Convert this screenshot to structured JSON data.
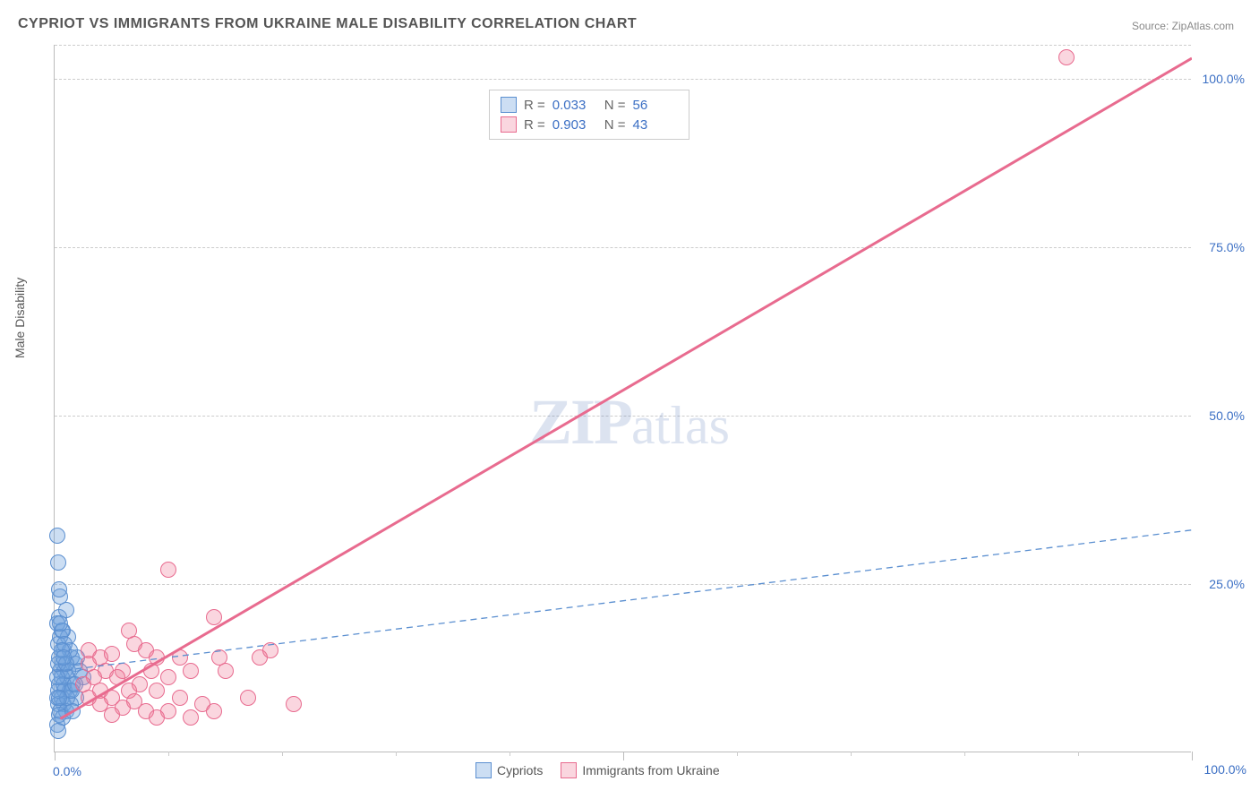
{
  "title": "CYPRIOT VS IMMIGRANTS FROM UKRAINE MALE DISABILITY CORRELATION CHART",
  "source": "Source: ZipAtlas.com",
  "ylabel": "Male Disability",
  "watermark_a": "ZIP",
  "watermark_b": "atlas",
  "chart": {
    "type": "scatter",
    "xlim": [
      0,
      100
    ],
    "ylim": [
      0,
      105
    ],
    "xtick_major": [
      0,
      50,
      100
    ],
    "xtick_minor": [
      10,
      20,
      30,
      40,
      60,
      70,
      80,
      90
    ],
    "ytick_labels": [
      "25.0%",
      "50.0%",
      "75.0%",
      "100.0%"
    ],
    "ytick_values": [
      25,
      50,
      75,
      100
    ],
    "xlabel_0": "0.0%",
    "xlabel_100": "100.0%",
    "grid_color": "#cccccc",
    "axis_color": "#bbbbbb",
    "background": "#ffffff",
    "tick_label_color": "#3b6fc4",
    "marker_radius": 9,
    "marker_stroke_width": 1.2,
    "line_width_solid": 3,
    "line_width_dashed": 1.3,
    "dash_pattern": "7,5"
  },
  "series": {
    "a": {
      "label": "Cypriots",
      "color_fill": "rgba(108,160,222,0.35)",
      "color_stroke": "#5b8fd0",
      "R": "0.033",
      "N": "56",
      "trend": {
        "x1": 0,
        "y1": 12,
        "x2": 100,
        "y2": 33,
        "dashed": true
      },
      "points": [
        [
          0.2,
          32
        ],
        [
          0.3,
          28
        ],
        [
          0.5,
          23
        ],
        [
          0.4,
          20
        ],
        [
          0.6,
          18
        ],
        [
          1.0,
          21
        ],
        [
          1.2,
          17
        ],
        [
          0.8,
          15
        ],
        [
          1.5,
          14
        ],
        [
          0.3,
          16
        ],
        [
          0.7,
          13
        ],
        [
          1.8,
          13
        ],
        [
          2.2,
          12
        ],
        [
          0.5,
          12
        ],
        [
          1.1,
          11
        ],
        [
          0.4,
          10
        ],
        [
          1.6,
          10
        ],
        [
          2.5,
          11
        ],
        [
          0.9,
          9
        ],
        [
          1.3,
          9
        ],
        [
          0.2,
          8
        ],
        [
          0.6,
          8
        ],
        [
          1.9,
          8
        ],
        [
          0.8,
          7
        ],
        [
          1.4,
          7
        ],
        [
          0.3,
          7
        ],
        [
          2.0,
          14
        ],
        [
          0.5,
          6
        ],
        [
          1.0,
          6
        ],
        [
          0.4,
          5.5
        ],
        [
          0.7,
          5
        ],
        [
          1.6,
          6
        ],
        [
          0.2,
          19
        ],
        [
          0.9,
          12
        ],
        [
          1.3,
          15
        ],
        [
          0.4,
          14
        ],
        [
          0.6,
          11
        ],
        [
          1.1,
          8
        ],
        [
          0.3,
          9
        ],
        [
          0.8,
          10
        ],
        [
          1.5,
          9
        ],
        [
          0.5,
          17
        ],
        [
          0.2,
          4
        ],
        [
          0.7,
          18
        ],
        [
          1.2,
          12
        ],
        [
          0.4,
          24
        ],
        [
          0.9,
          16
        ],
        [
          0.3,
          13
        ],
        [
          0.6,
          15
        ],
        [
          1.8,
          10
        ],
        [
          0.5,
          19
        ],
        [
          0.2,
          11
        ],
        [
          1.0,
          13
        ],
        [
          0.4,
          8
        ],
        [
          0.8,
          14
        ],
        [
          0.3,
          3
        ]
      ]
    },
    "b": {
      "label": "Immigrants from Ukraine",
      "color_fill": "rgba(240,120,150,0.3)",
      "color_stroke": "#e86b8f",
      "R": "0.903",
      "N": "43",
      "trend": {
        "x1": 0.5,
        "y1": 5,
        "x2": 100,
        "y2": 103,
        "dashed": false
      },
      "points": [
        [
          89,
          103
        ],
        [
          10,
          27
        ],
        [
          6.5,
          18
        ],
        [
          7,
          16
        ],
        [
          8,
          15
        ],
        [
          9,
          14
        ],
        [
          14,
          20
        ],
        [
          14.5,
          14
        ],
        [
          18,
          14
        ],
        [
          4,
          14
        ],
        [
          5,
          14.5
        ],
        [
          3,
          13
        ],
        [
          4.5,
          12
        ],
        [
          6,
          12
        ],
        [
          8.5,
          12
        ],
        [
          11,
          14
        ],
        [
          3.5,
          11
        ],
        [
          5.5,
          11
        ],
        [
          7.5,
          10
        ],
        [
          10,
          11
        ],
        [
          12,
          12
        ],
        [
          2.5,
          10
        ],
        [
          4,
          9
        ],
        [
          6.5,
          9
        ],
        [
          9,
          9
        ],
        [
          15,
          12
        ],
        [
          3,
          8
        ],
        [
          5,
          8
        ],
        [
          7,
          7.5
        ],
        [
          11,
          8
        ],
        [
          13,
          7
        ],
        [
          17,
          8
        ],
        [
          21,
          7
        ],
        [
          4,
          7
        ],
        [
          6,
          6.5
        ],
        [
          8,
          6
        ],
        [
          10,
          6
        ],
        [
          14,
          6
        ],
        [
          5,
          5.5
        ],
        [
          9,
          5
        ],
        [
          12,
          5
        ],
        [
          19,
          15
        ],
        [
          3,
          15
        ]
      ]
    }
  },
  "legend": {
    "r_label": "R =",
    "n_label": "N ="
  }
}
